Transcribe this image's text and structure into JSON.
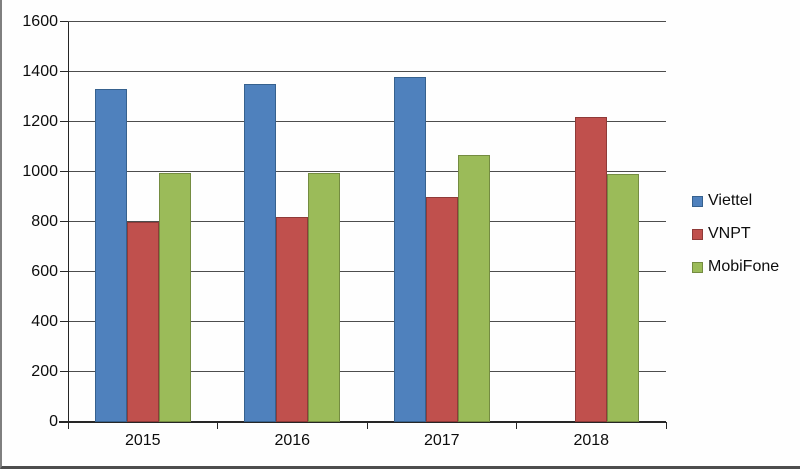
{
  "chart_data": {
    "type": "bar",
    "title": "",
    "xlabel": "",
    "ylabel": "",
    "categories": [
      "2015",
      "2016",
      "2017",
      "2018"
    ],
    "series": [
      {
        "name": "Viettel",
        "color": "#4f81bd",
        "border_color": "#36618e",
        "values": [
          1330,
          1350,
          1380,
          null
        ]
      },
      {
        "name": "VNPT",
        "color": "#c0504d",
        "border_color": "#8f3a38",
        "values": [
          800,
          820,
          900,
          1220
        ]
      },
      {
        "name": "MobiFone",
        "color": "#9bbb59",
        "border_color": "#748c41",
        "values": [
          995,
          995,
          1065,
          990
        ]
      }
    ],
    "ylim": [
      0,
      1600
    ],
    "ytick_step": 200,
    "yticks": [
      "0",
      "200",
      "400",
      "600",
      "800",
      "1000",
      "1200",
      "1400",
      "1600"
    ],
    "grid": "horizontal",
    "legend_position": "right"
  }
}
